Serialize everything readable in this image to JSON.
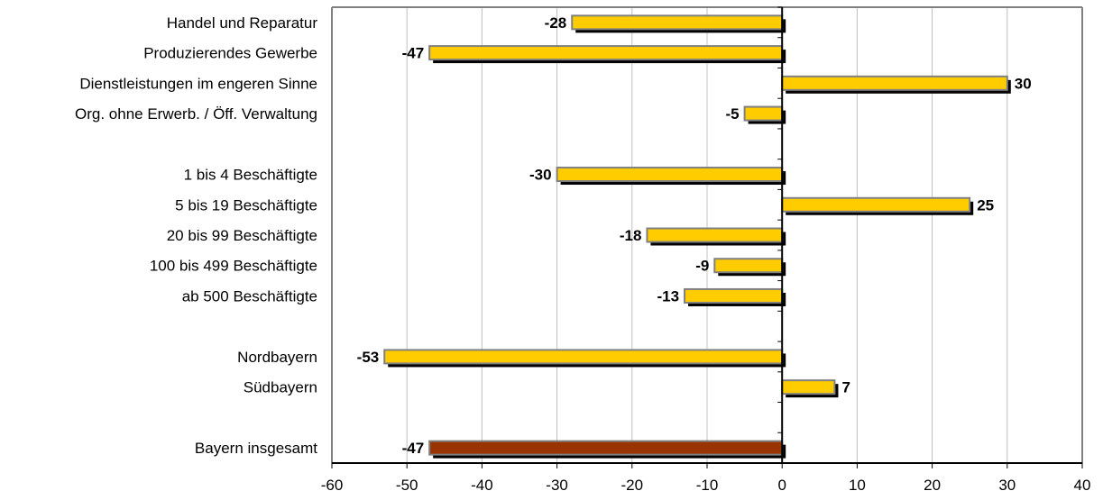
{
  "chart_data": {
    "type": "bar",
    "orientation": "horizontal",
    "categories": [
      "Handel und Reparatur",
      "Produzierendes Gewerbe",
      "Dienstleistungen im engeren Sinne",
      "Org. ohne Erwerb. / Öff. Verwaltung",
      "",
      "1 bis   4 Beschäftigte",
      "5 bis  19 Beschäftigte",
      "20 bis  99 Beschäftigte",
      "100 bis 499 Beschäftigte",
      "ab 500 Beschäftigte",
      "",
      "Nordbayern",
      "Südbayern",
      "",
      "Bayern insgesamt"
    ],
    "values": [
      -28,
      -47,
      30,
      -5,
      null,
      -30,
      25,
      -18,
      -9,
      -13,
      null,
      -53,
      7,
      null,
      -47
    ],
    "data_labels": [
      "-28",
      "-47",
      "30",
      "-5",
      "",
      "-30",
      "25",
      "-18",
      "-9",
      "-13",
      "",
      "-53",
      "7",
      "",
      "-47"
    ],
    "highlight_category": "Bayern insgesamt",
    "xlim": [
      -60,
      40
    ],
    "xticks": [
      -60,
      -50,
      -40,
      -30,
      -20,
      -10,
      0,
      10,
      20,
      30,
      40
    ],
    "grid": "vertical",
    "colors": {
      "bar": "#FFCC00",
      "bar_highlight": "#993300",
      "bar_border": "#808080",
      "shadow": "#000000",
      "gridline": "#C0C0C0",
      "axis": "#808080"
    }
  }
}
